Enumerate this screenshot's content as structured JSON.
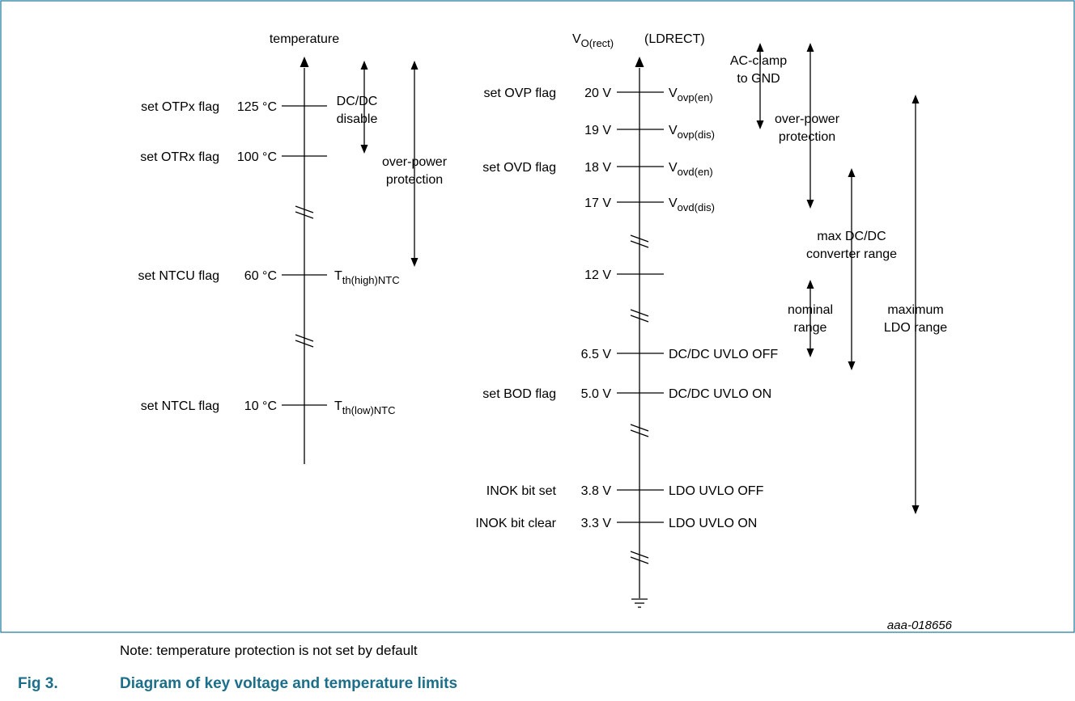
{
  "diagram": {
    "temperature_axis": {
      "title": "temperature",
      "levels": [
        {
          "id": "otpx",
          "flag": "set OTPx flag",
          "value": "125 °C",
          "tag": "",
          "tag_sub": "",
          "tag_suffix": ""
        },
        {
          "id": "otrx",
          "flag": "set OTRx flag",
          "value": "100 °C",
          "tag": "",
          "tag_sub": "",
          "tag_suffix": ""
        },
        {
          "id": "ntcu",
          "flag": "set NTCU flag",
          "value": "60 °C",
          "tag": "T",
          "tag_sub": "th(high)NTC",
          "tag_suffix": ""
        },
        {
          "id": "ntcl",
          "flag": "set NTCL flag",
          "value": "10 °C",
          "tag": "T",
          "tag_sub": "th(low)NTC",
          "tag_suffix": ""
        }
      ],
      "ranges": [
        {
          "id": "dcdc-disable",
          "lines": [
            "DC/DC",
            "disable"
          ]
        },
        {
          "id": "temp-over-power",
          "lines": [
            "over-power",
            "protection"
          ]
        }
      ]
    },
    "voltage_axis": {
      "title_main": "V",
      "title_sub": "O(rect)",
      "title_tag": "(LDRECT)",
      "levels": [
        {
          "id": "20v",
          "flag": "set OVP flag",
          "value": "20 V",
          "tag": "V",
          "tag_sub": "ovp(en)",
          "tag_suffix": ""
        },
        {
          "id": "19v",
          "flag": "",
          "value": "19 V",
          "tag": "V",
          "tag_sub": "ovp(dis)",
          "tag_suffix": ""
        },
        {
          "id": "18v",
          "flag": "set OVD flag",
          "value": "18 V",
          "tag": "V",
          "tag_sub": "ovd(en)",
          "tag_suffix": ""
        },
        {
          "id": "17v",
          "flag": "",
          "value": "17 V",
          "tag": "V",
          "tag_sub": "ovd(dis)",
          "tag_suffix": ""
        },
        {
          "id": "12v",
          "flag": "",
          "value": "12 V",
          "tag": "",
          "tag_sub": "",
          "tag_suffix": ""
        },
        {
          "id": "6v5",
          "flag": "",
          "value": "6.5 V",
          "tag": "DC/DC UVLO OFF",
          "tag_sub": "",
          "tag_suffix": ""
        },
        {
          "id": "5v0",
          "flag": "set BOD flag",
          "value": "5.0 V",
          "tag": "DC/DC UVLO ON",
          "tag_sub": "",
          "tag_suffix": ""
        },
        {
          "id": "3v8",
          "flag": "INOK bit set",
          "value": "3.8 V",
          "tag": "LDO UVLO OFF",
          "tag_sub": "",
          "tag_suffix": ""
        },
        {
          "id": "3v3",
          "flag": "INOK bit clear",
          "value": "3.3 V",
          "tag": "LDO UVLO ON",
          "tag_sub": "",
          "tag_suffix": ""
        }
      ],
      "ranges": [
        {
          "id": "ac-clamp",
          "lines": [
            "AC-clamp",
            "to GND"
          ]
        },
        {
          "id": "volt-over-power",
          "lines": [
            "over-power",
            "protection"
          ]
        },
        {
          "id": "max-dcdc",
          "lines": [
            "max DC/DC",
            "converter range"
          ]
        },
        {
          "id": "nominal",
          "lines": [
            "nominal",
            "range"
          ]
        },
        {
          "id": "max-ldo",
          "lines": [
            "maximum",
            "LDO range"
          ]
        }
      ]
    },
    "reference_id": "aaa-018656"
  },
  "note": "Note: temperature protection is not set by default",
  "figure": {
    "label": "Fig 3.",
    "title": "Diagram of key voltage and temperature limits"
  },
  "colors": {
    "frame": "#2a7fa0",
    "caption": "#1c6f8a",
    "ink": "#000000"
  }
}
